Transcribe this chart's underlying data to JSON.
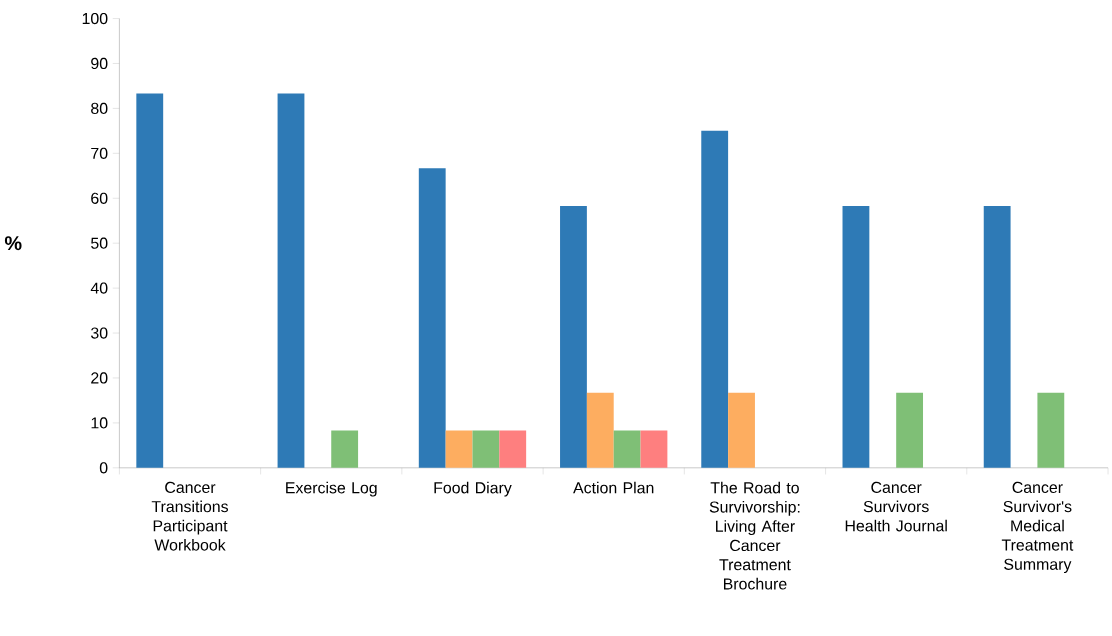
{
  "chart_data": {
    "type": "bar",
    "ylabel": "%",
    "categories": [
      "Cancer Transitions Participant Workbook",
      "Exercise Log",
      "Food Diary",
      "Action Plan",
      "The Road to Survivorship: Living After Cancer Treatment Brochure",
      "Cancer Survivors Health Journal",
      "Cancer Survivor's Medical Treatment Summary"
    ],
    "series": [
      {
        "color": "#2e7ab6",
        "values": [
          83.3,
          83.3,
          66.7,
          58.3,
          75,
          58.3,
          58.3
        ]
      },
      {
        "color": "#fdad60",
        "values": [
          0,
          0,
          8.3,
          16.7,
          16.7,
          0,
          0
        ]
      },
      {
        "color": "#7fbf76",
        "values": [
          0,
          8.3,
          8.3,
          8.3,
          0,
          16.7,
          16.7
        ]
      },
      {
        "color": "#fe7f7f",
        "values": [
          0,
          0,
          8.3,
          8.3,
          0,
          0,
          0
        ]
      }
    ],
    "ylim": [
      0,
      100
    ],
    "yticks": [
      0,
      10,
      20,
      30,
      40,
      50,
      60,
      70,
      80,
      90,
      100
    ],
    "grid": false
  }
}
